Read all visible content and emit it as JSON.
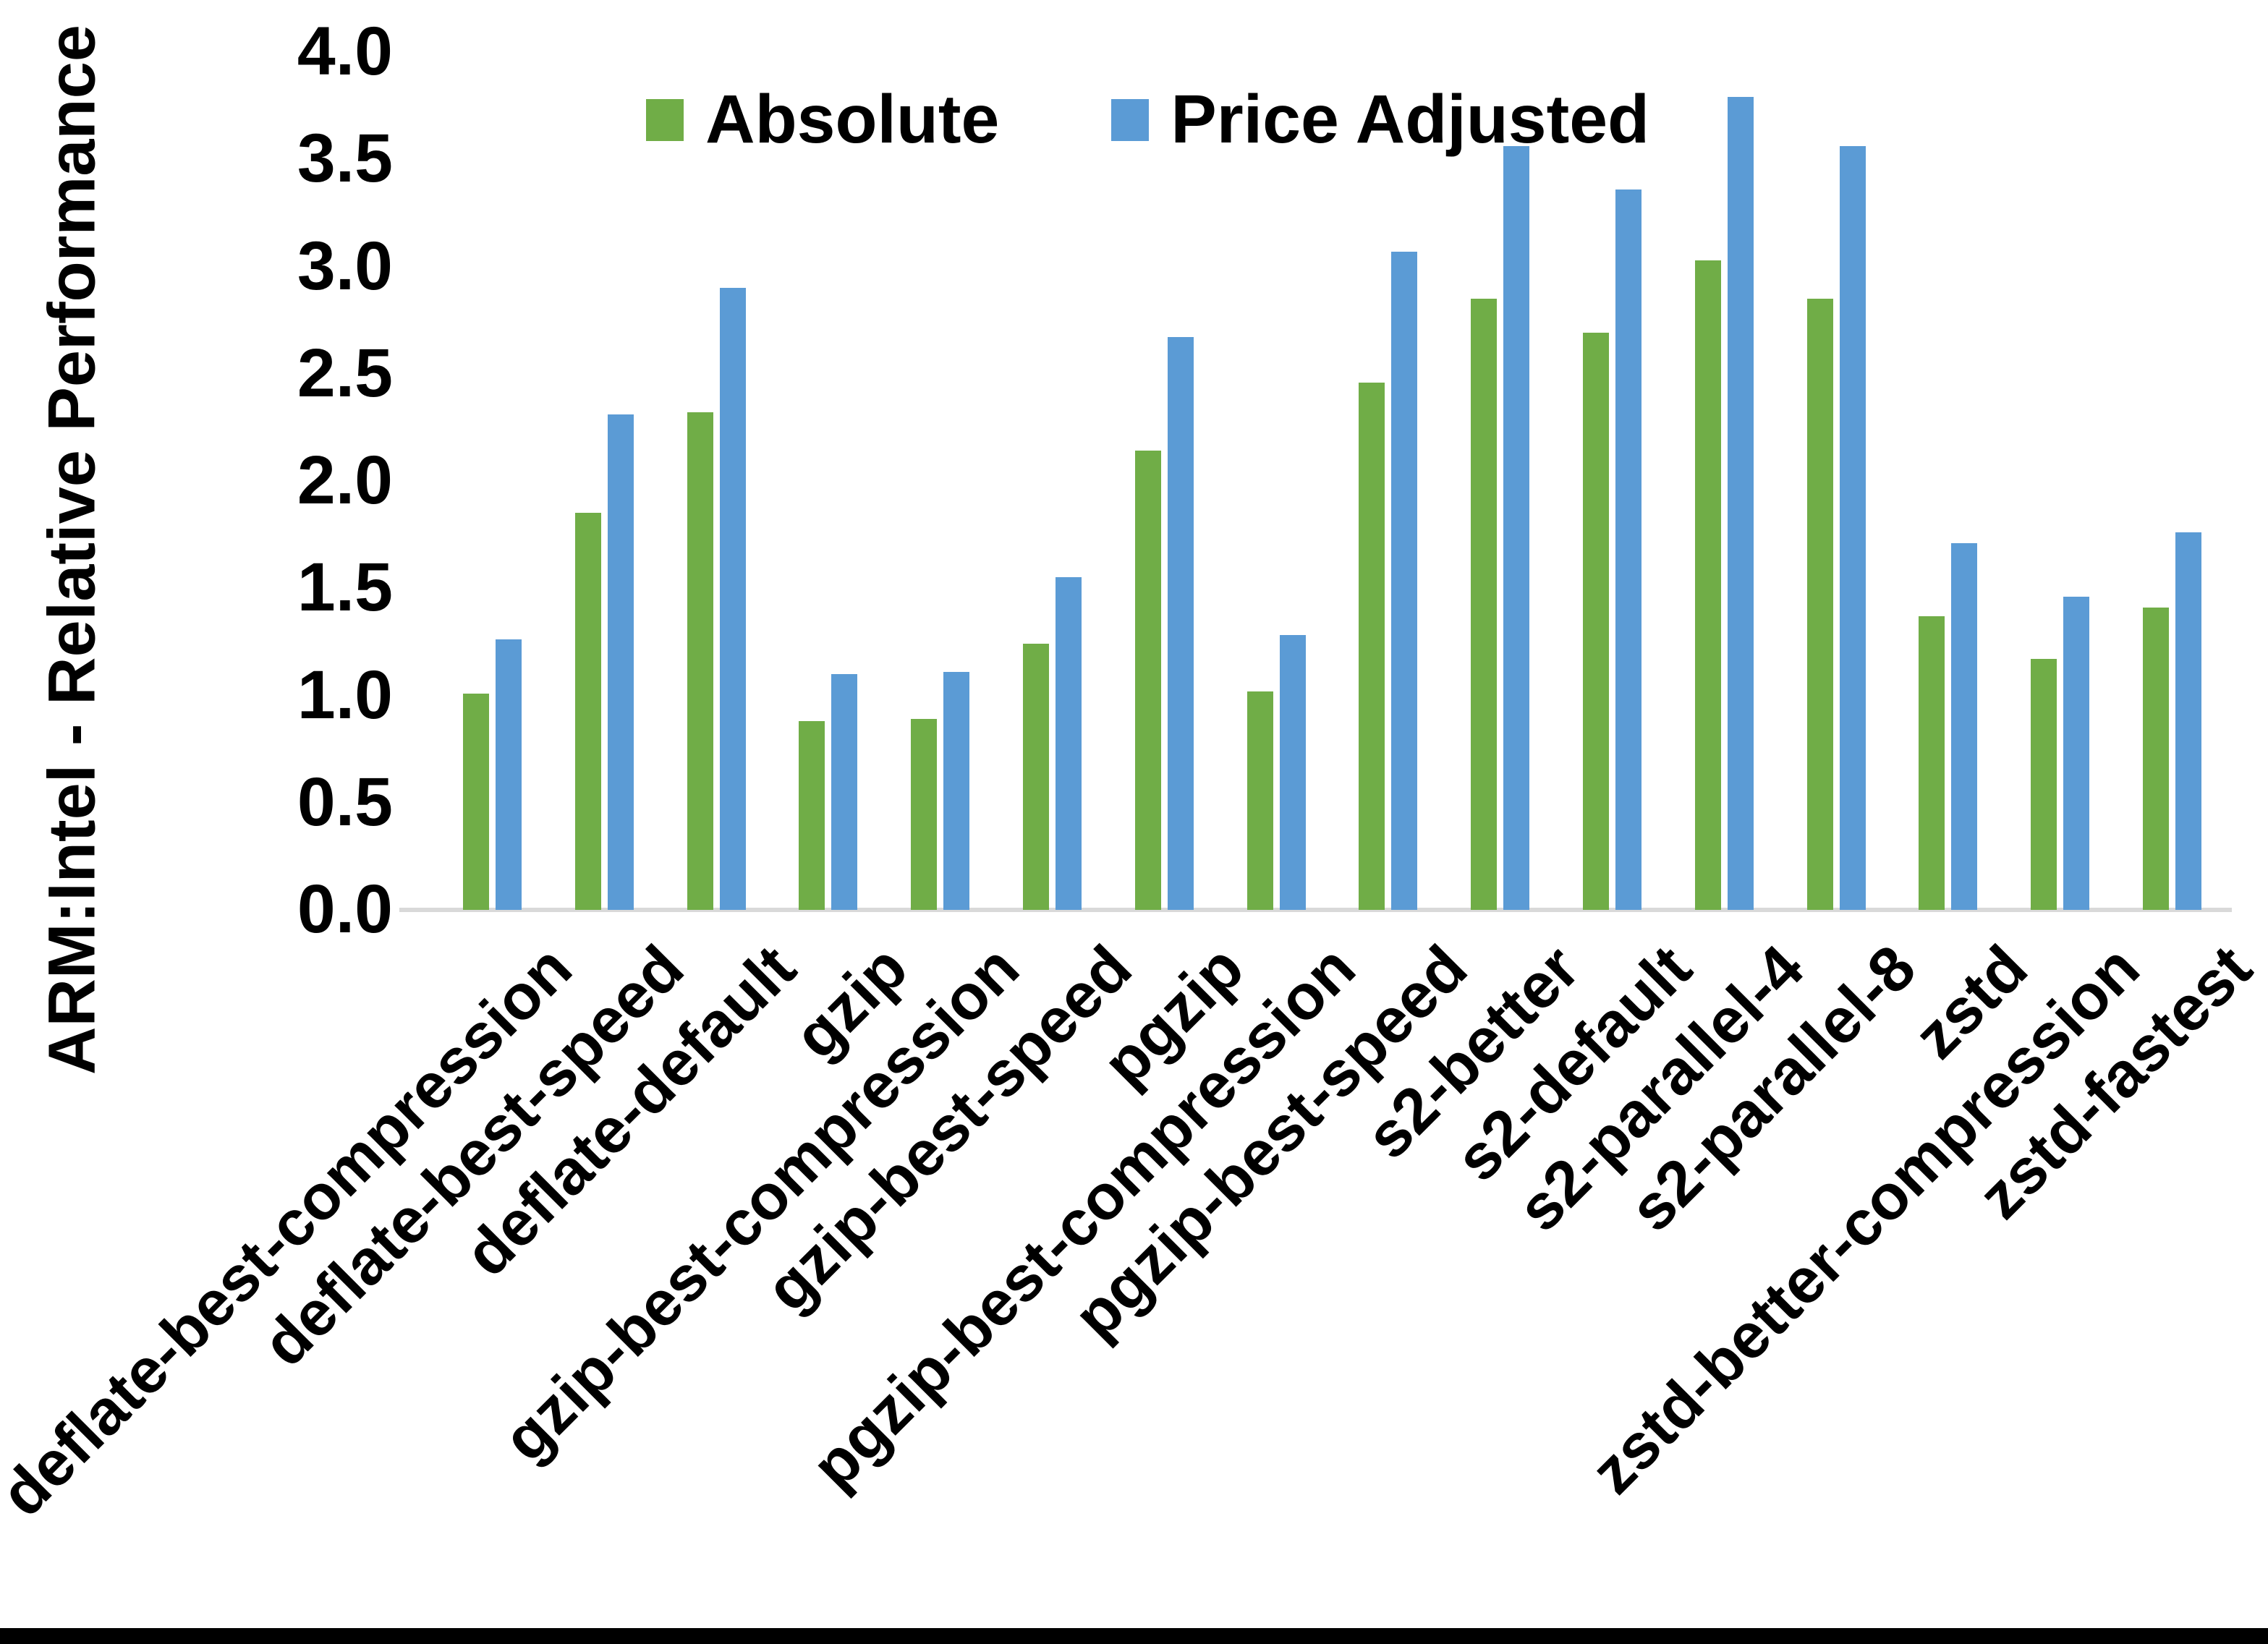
{
  "chart_data": {
    "type": "bar",
    "title": "",
    "ylabel": "ARM:Intel - Relative Performance",
    "xlabel": "",
    "ylim": [
      0.0,
      4.0
    ],
    "ytick_step": 0.5,
    "yticks": [
      0.0,
      0.5,
      1.0,
      1.5,
      2.0,
      2.5,
      3.0,
      3.5,
      4.0
    ],
    "grid": false,
    "legend_position": "top-center",
    "categories": [
      "deflate-best-compression",
      "deflate-best-speed",
      "deflate-default",
      "gzip",
      "gzip-best-compression",
      "gzip-best-speed",
      "pgzip",
      "pgzip-best-compression",
      "pgzip-best-speed",
      "s2-better",
      "s2-default",
      "s2-parallel-4",
      "s2-parallel-8",
      "zstd",
      "zstd-better-compression",
      "zstd-fastest"
    ],
    "series": [
      {
        "name": "Absolute",
        "color": "#70AD47",
        "values": [
          1.01,
          1.85,
          2.32,
          0.88,
          0.89,
          1.24,
          2.14,
          1.02,
          2.46,
          2.85,
          2.69,
          3.03,
          2.85,
          1.37,
          1.17,
          1.41
        ]
      },
      {
        "name": "Price Adjusted",
        "color": "#5B9BD5",
        "values": [
          1.26,
          2.31,
          2.9,
          1.1,
          1.11,
          1.55,
          2.67,
          1.28,
          3.07,
          3.56,
          3.36,
          3.79,
          3.56,
          1.71,
          1.46,
          1.76
        ]
      }
    ]
  },
  "colors": {
    "background": "#FFFFFF",
    "axis_line": "#D9D9D9",
    "text": "#000000",
    "bottom_bar": "#000000"
  }
}
